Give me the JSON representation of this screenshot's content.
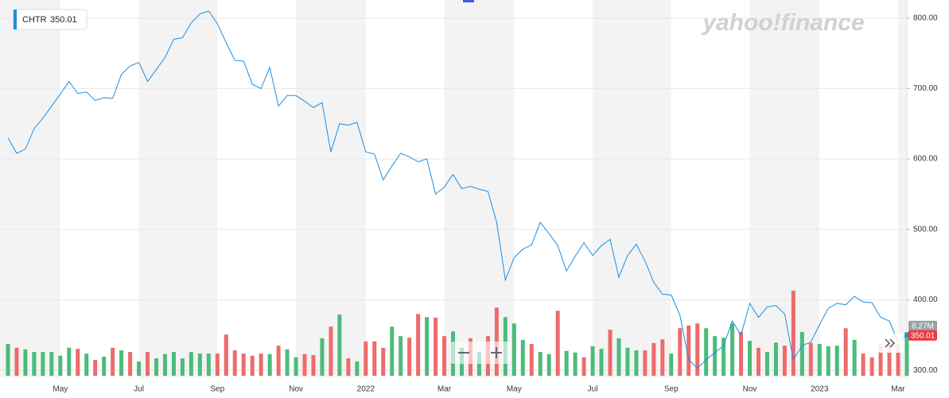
{
  "chart_data": {
    "type": "line",
    "symbol": "CHTR",
    "watermark": "yahoo!finance",
    "categories": [
      null,
      null,
      null,
      null,
      null,
      null,
      "May",
      null,
      null,
      null,
      null,
      null,
      null,
      null,
      null,
      "Jul",
      null,
      null,
      null,
      null,
      null,
      null,
      null,
      null,
      "Sep",
      null,
      null,
      null,
      null,
      null,
      null,
      null,
      null,
      "Nov",
      null,
      null,
      null,
      null,
      null,
      null,
      null,
      "2022",
      null,
      null,
      null,
      null,
      null,
      null,
      null,
      null,
      "Mar",
      null,
      null,
      null,
      null,
      null,
      null,
      null,
      "May",
      null,
      null,
      null,
      null,
      null,
      null,
      null,
      null,
      "Jul",
      null,
      null,
      null,
      null,
      null,
      null,
      null,
      null,
      "Sep",
      null,
      null,
      null,
      null,
      null,
      null,
      null,
      null,
      "Nov",
      null,
      null,
      null,
      null,
      null,
      null,
      null,
      "2023",
      null,
      null,
      null,
      null,
      null,
      null,
      null,
      null,
      "Mar",
      null
    ],
    "series": [
      {
        "color": "#1a8fe3",
        "values": [
          630,
          608,
          614,
          643,
          658,
          675,
          692,
          710,
          693,
          695,
          683,
          687,
          686,
          720,
          732,
          737,
          710,
          727,
          744,
          770,
          772,
          793,
          806,
          810,
          792,
          765,
          740,
          739,
          706,
          700,
          730,
          675,
          690,
          690,
          682,
          673,
          680,
          610,
          650,
          648,
          652,
          610,
          607,
          570,
          590,
          608,
          603,
          596,
          600,
          550,
          560,
          578,
          558,
          561,
          557,
          554,
          510,
          428,
          460,
          472,
          478,
          510,
          494,
          477,
          441,
          462,
          481,
          463,
          477,
          486,
          432,
          463,
          479,
          455,
          425,
          408,
          407,
          378,
          315,
          303,
          315,
          325,
          335,
          370,
          350,
          395,
          375,
          390,
          392,
          380,
          315,
          335,
          340,
          365,
          388,
          395,
          393,
          405,
          397,
          396,
          375,
          370,
          340,
          350.01
        ]
      }
    ],
    "volume": {
      "up_color": "#4cbb7a",
      "down_color": "#ee6b6b",
      "values": [
        6.0,
        5.3,
        5.0,
        4.5,
        4.5,
        4.5,
        3.8,
        5.3,
        5.1,
        4.2,
        3.0,
        3.6,
        5.3,
        4.8,
        4.5,
        2.7,
        4.5,
        3.3,
        4.1,
        4.5,
        3.3,
        4.5,
        4.2,
        4.2,
        4.2,
        7.8,
        4.8,
        4.2,
        3.8,
        4.2,
        4.1,
        5.7,
        5.0,
        3.5,
        4.1,
        3.9,
        7.1,
        9.3,
        11.6,
        3.3,
        2.7,
        6.5,
        6.5,
        5.3,
        9.3,
        7.5,
        7.2,
        11.7,
        11.1,
        11.0,
        7.5,
        8.4,
        5.3,
        7.1,
        4.5,
        7.5,
        12.9,
        11.1,
        9.9,
        6.8,
        6.0,
        4.5,
        4.1,
        12.3,
        4.7,
        4.4,
        3.5,
        5.6,
        5.1,
        8.7,
        7.1,
        5.3,
        4.8,
        4.8,
        6.2,
        6.9,
        4.2,
        9.0,
        9.5,
        9.9,
        9.0,
        7.5,
        7.2,
        9.9,
        8.3,
        6.6,
        5.3,
        4.5,
        6.3,
        5.7,
        16.1,
        8.3,
        6.2,
        6.0,
        5.6,
        5.7,
        9.0,
        6.8,
        4.2,
        3.5,
        6.0,
        6.0,
        6.0,
        8.27
      ],
      "value_labels": [
        null,
        null,
        null,
        null,
        null,
        null,
        null,
        null,
        null,
        null,
        null,
        null,
        null,
        null,
        null,
        null,
        null,
        null,
        null,
        null,
        null,
        null,
        null,
        null,
        null,
        null,
        null,
        null,
        null,
        null,
        null,
        null,
        null,
        null,
        null,
        null,
        null,
        null,
        null,
        null,
        null,
        null,
        null,
        null,
        null,
        null,
        null,
        null,
        null,
        null,
        null,
        null,
        null,
        null,
        null,
        null,
        null,
        null,
        null,
        null,
        null,
        null,
        null,
        null,
        null,
        null,
        null,
        null,
        null,
        null,
        null,
        null,
        null,
        null,
        null,
        null,
        null,
        null,
        null,
        null,
        null,
        null,
        null,
        null,
        null,
        null,
        null,
        null,
        null,
        null,
        null,
        null,
        null,
        null,
        null,
        null,
        null,
        null,
        null,
        null,
        null,
        null,
        null,
        "8.27M"
      ],
      "up": [
        true,
        false,
        true,
        true,
        true,
        true,
        true,
        true,
        false,
        true,
        false,
        true,
        false,
        true,
        false,
        true,
        false,
        true,
        true,
        true,
        true,
        true,
        true,
        true,
        false,
        false,
        false,
        false,
        false,
        false,
        true,
        false,
        true,
        true,
        false,
        false,
        true,
        false,
        true,
        false,
        true,
        false,
        false,
        false,
        true,
        true,
        false,
        false,
        true,
        false,
        false,
        true,
        true,
        false,
        true,
        false,
        false,
        true,
        true,
        true,
        false,
        true,
        true,
        false,
        true,
        true,
        false,
        true,
        true,
        false,
        true,
        true,
        true,
        false,
        false,
        false,
        true,
        false,
        false,
        false,
        true,
        true,
        true,
        true,
        false,
        true,
        false,
        true,
        true,
        false,
        false,
        true,
        false,
        true,
        true,
        true,
        false,
        true,
        false,
        false,
        false,
        false,
        false,
        true
      ]
    },
    "ylim": [
      290,
      820
    ],
    "yticks": [
      {
        "value": 300,
        "label": "300.00"
      },
      {
        "value": 400,
        "label": "400.00"
      },
      {
        "value": 500,
        "label": "500.00"
      },
      {
        "value": 600,
        "label": "600.00"
      },
      {
        "value": 700,
        "label": "700.00"
      },
      {
        "value": 800,
        "label": "800.00"
      }
    ],
    "grid": true
  }
}
